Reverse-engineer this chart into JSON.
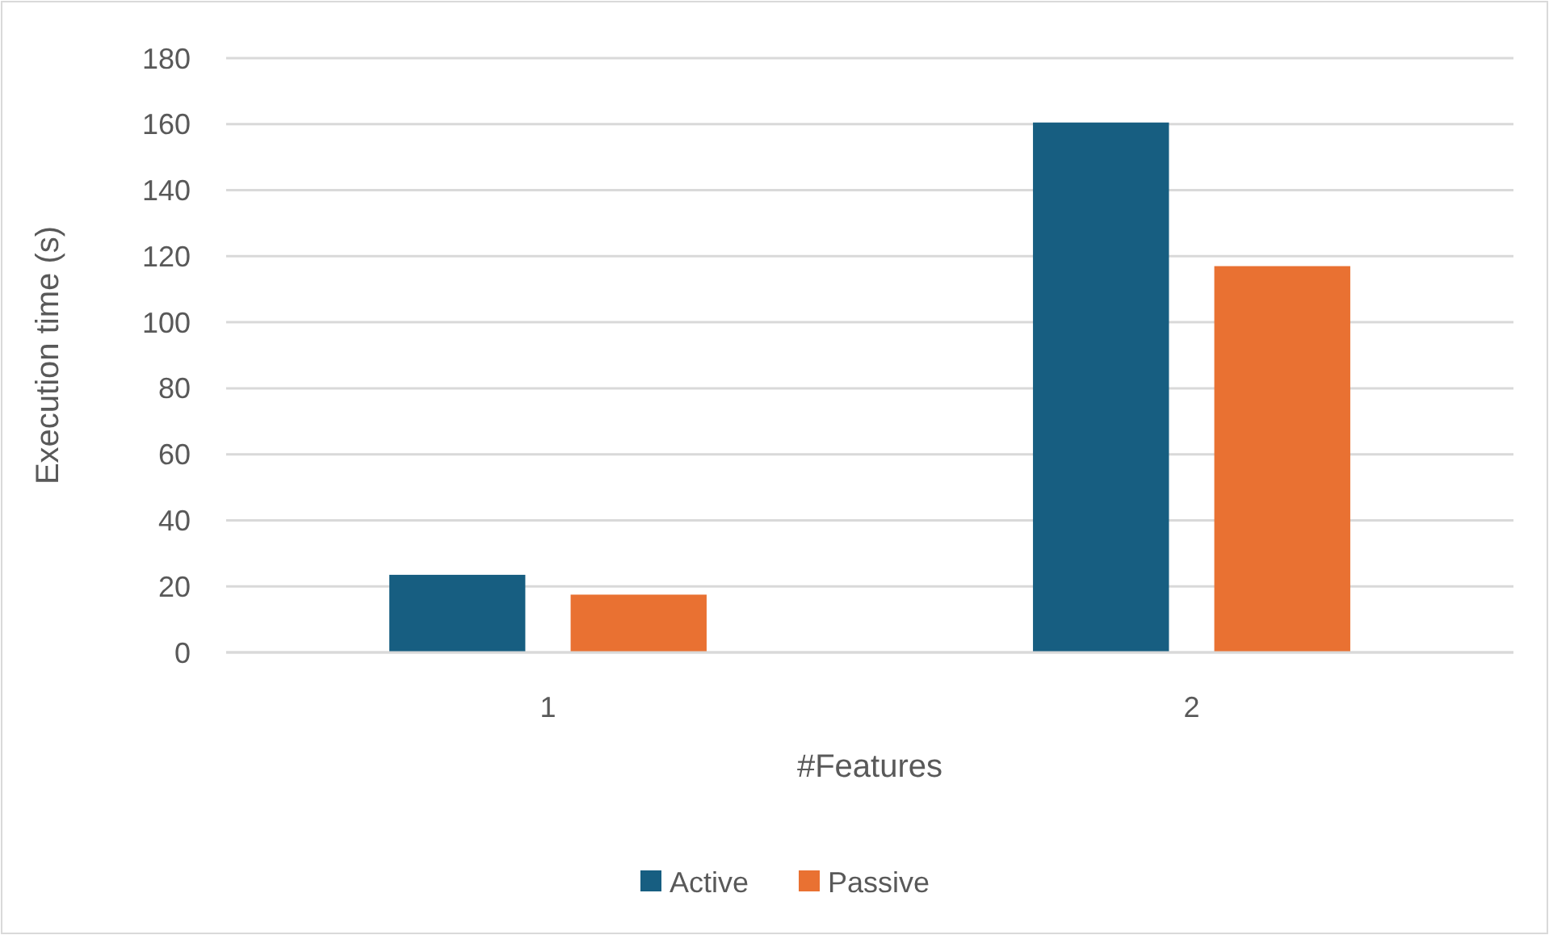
{
  "chart_data": {
    "type": "bar",
    "xlabel": "#Features",
    "ylabel": "Execution time (s)",
    "categories": [
      "1",
      "2"
    ],
    "series": [
      {
        "name": "Active",
        "color": "#175e81",
        "values": [
          23.5,
          160.5
        ]
      },
      {
        "name": "Passive",
        "color": "#e97132",
        "values": [
          17.5,
          117
        ]
      }
    ],
    "ylim": [
      0,
      180
    ],
    "yticks": [
      0,
      20,
      40,
      60,
      80,
      100,
      120,
      140,
      160,
      180
    ],
    "grid": "y",
    "legend": "bottom"
  }
}
